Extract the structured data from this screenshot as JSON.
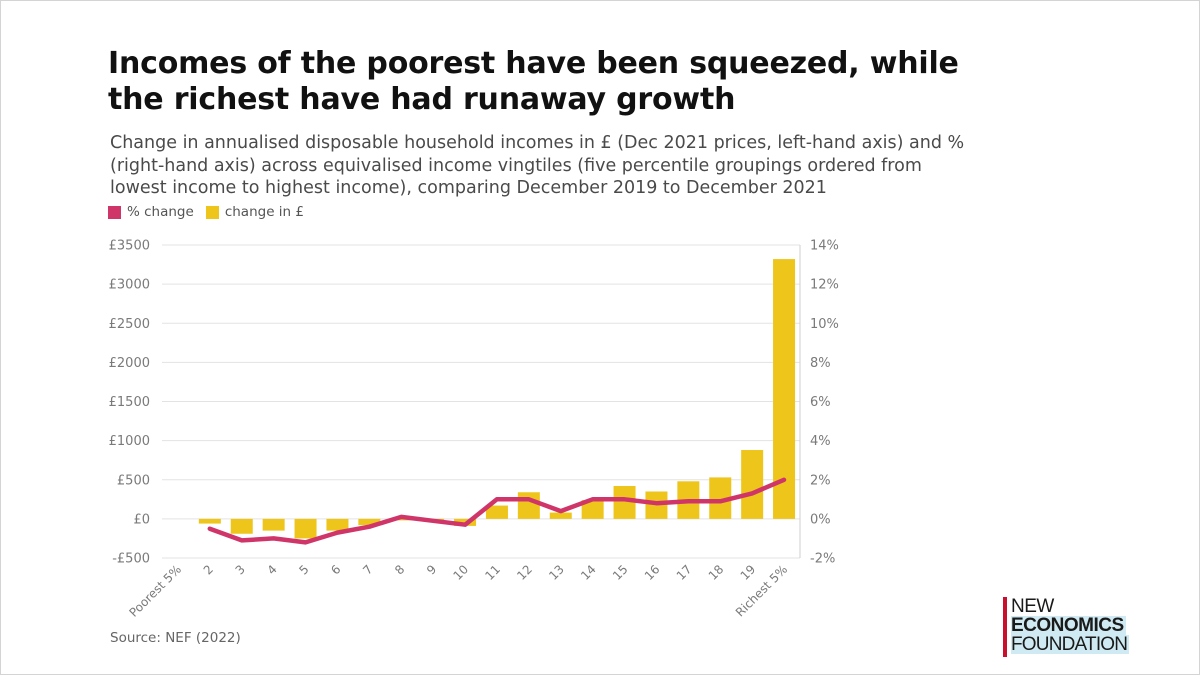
{
  "title": "Incomes of the poorest have been squeezed, while the richest have had runaway growth",
  "subtitle": "Change in annualised disposable household incomes in £ (Dec 2021 prices, left-hand axis) and % (right-hand axis) across equivalised income vingtiles (five percentile groupings ordered from lowest income to highest income), comparing December 2019 to December 2021",
  "legend": {
    "pct_label": "% change",
    "gbp_label": "change in £"
  },
  "source": "Source: NEF (2022)",
  "logo": {
    "line1": "NEW",
    "line2": "ECONOMICS",
    "line3": "FOUNDATION"
  },
  "colors": {
    "bar": "#eec51a",
    "line": "#d0356a",
    "grid": "#e3e3e3",
    "axis_text": "#7a7a7a",
    "logo_red": "#c8102e",
    "logo_highlight": "#cfeaf2"
  },
  "chart_data": {
    "type": "bar",
    "categories": [
      "Poorest 5%",
      "2",
      "3",
      "4",
      "5",
      "6",
      "7",
      "8",
      "9",
      "10",
      "11",
      "12",
      "13",
      "14",
      "15",
      "16",
      "17",
      "18",
      "19",
      "Richest 5%"
    ],
    "series": [
      {
        "name": "change in £",
        "type": "bar",
        "axis": "left",
        "values": [
          null,
          -60,
          -190,
          -150,
          -250,
          -150,
          -80,
          0,
          0,
          -90,
          170,
          340,
          80,
          240,
          420,
          350,
          480,
          530,
          880,
          3320
        ]
      },
      {
        "name": "% change",
        "type": "line",
        "axis": "right",
        "values": [
          null,
          -0.5,
          -1.1,
          -1.0,
          -1.2,
          -0.7,
          -0.4,
          0.1,
          -0.1,
          -0.3,
          1.0,
          1.0,
          0.4,
          1.0,
          1.0,
          0.8,
          0.9,
          0.9,
          1.3,
          2.0
        ]
      }
    ],
    "left_axis": {
      "min": -500,
      "max": 3500,
      "ticks": [
        -500,
        0,
        500,
        1000,
        1500,
        2000,
        2500,
        3000,
        3500
      ],
      "tick_labels": [
        "-£500",
        "£0",
        "£500",
        "£1000",
        "£1500",
        "£2000",
        "£2500",
        "£3000",
        "£3500"
      ]
    },
    "right_axis": {
      "min": -2,
      "max": 14,
      "ticks": [
        -2,
        0,
        2,
        4,
        6,
        8,
        10,
        12,
        14
      ],
      "tick_labels": [
        "-2%",
        "0%",
        "2%",
        "4%",
        "6%",
        "8%",
        "10%",
        "12%",
        "14%"
      ]
    },
    "grid": true
  }
}
